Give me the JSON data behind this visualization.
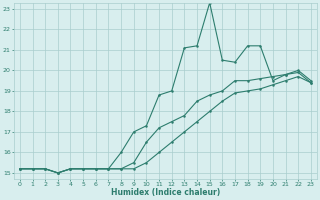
{
  "xlabel": "Humidex (Indice chaleur)",
  "x_values": [
    0,
    1,
    2,
    3,
    4,
    5,
    6,
    7,
    8,
    9,
    10,
    11,
    12,
    13,
    14,
    15,
    16,
    17,
    18,
    19,
    20,
    21,
    22,
    23
  ],
  "line_jagged": [
    15.2,
    15.2,
    15.2,
    15.0,
    15.2,
    15.2,
    15.2,
    15.2,
    16.0,
    17.0,
    17.3,
    18.8,
    19.0,
    21.1,
    21.2,
    23.3,
    20.5,
    20.4,
    21.2,
    21.2,
    19.5,
    19.8,
    20.0,
    19.5
  ],
  "line_upper": [
    15.2,
    15.2,
    15.2,
    15.0,
    15.2,
    15.2,
    15.2,
    15.2,
    15.2,
    15.5,
    16.5,
    17.2,
    17.5,
    17.8,
    18.5,
    18.8,
    19.0,
    19.5,
    19.5,
    19.6,
    19.7,
    19.8,
    19.9,
    19.4
  ],
  "line_lower": [
    15.2,
    15.2,
    15.2,
    15.0,
    15.2,
    15.2,
    15.2,
    15.2,
    15.2,
    15.2,
    15.5,
    16.0,
    16.5,
    17.0,
    17.5,
    18.0,
    18.5,
    18.9,
    19.0,
    19.1,
    19.3,
    19.5,
    19.7,
    19.4
  ],
  "line_color": "#2d7d6e",
  "bg_color": "#d8eeee",
  "grid_color": "#aacece",
  "ylim": [
    15,
    23
  ],
  "xlim": [
    -0.5,
    23.5
  ],
  "yticks": [
    15,
    16,
    17,
    18,
    19,
    20,
    21,
    22,
    23
  ],
  "xticks": [
    0,
    1,
    2,
    3,
    4,
    5,
    6,
    7,
    8,
    9,
    10,
    11,
    12,
    13,
    14,
    15,
    16,
    17,
    18,
    19,
    20,
    21,
    22,
    23
  ]
}
